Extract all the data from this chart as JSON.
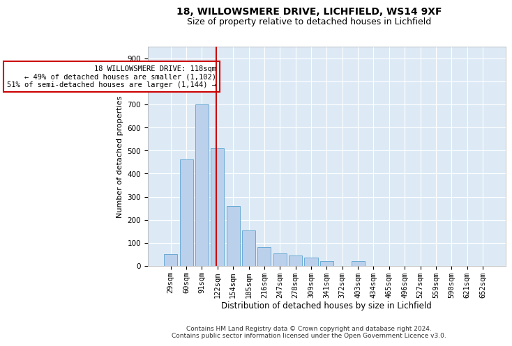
{
  "title1": "18, WILLOWSMERE DRIVE, LICHFIELD, WS14 9XF",
  "title2": "Size of property relative to detached houses in Lichfield",
  "xlabel": "Distribution of detached houses by size in Lichfield",
  "ylabel": "Number of detached properties",
  "bar_labels": [
    "29sqm",
    "60sqm",
    "91sqm",
    "122sqm",
    "154sqm",
    "185sqm",
    "216sqm",
    "247sqm",
    "278sqm",
    "309sqm",
    "341sqm",
    "372sqm",
    "403sqm",
    "434sqm",
    "465sqm",
    "496sqm",
    "527sqm",
    "559sqm",
    "590sqm",
    "621sqm",
    "652sqm"
  ],
  "bar_heights": [
    50,
    460,
    700,
    510,
    260,
    155,
    80,
    55,
    45,
    35,
    20,
    0,
    20,
    0,
    0,
    0,
    0,
    0,
    0,
    0,
    0
  ],
  "bar_color": "#bbd0eb",
  "bar_edge_color": "#6aaad4",
  "background_color": "#ddeaf6",
  "vline_color": "#cc0000",
  "annotation_text": "18 WILLOWSMERE DRIVE: 118sqm\n← 49% of detached houses are smaller (1,102)\n51% of semi-detached houses are larger (1,144) →",
  "annotation_box_color": "#ffffff",
  "annotation_box_edge": "#cc0000",
  "footer": "Contains HM Land Registry data © Crown copyright and database right 2024.\nContains public sector information licensed under the Open Government Licence v3.0.",
  "ylim": [
    0,
    950
  ],
  "yticks": [
    0,
    100,
    200,
    300,
    400,
    500,
    600,
    700,
    800,
    900
  ],
  "grid_color": "#ffffff",
  "title1_fontsize": 10,
  "title2_fontsize": 9,
  "xlabel_fontsize": 8.5,
  "ylabel_fontsize": 8,
  "tick_fontsize": 7.5,
  "annotation_fontsize": 7.5,
  "footer_fontsize": 6.5
}
